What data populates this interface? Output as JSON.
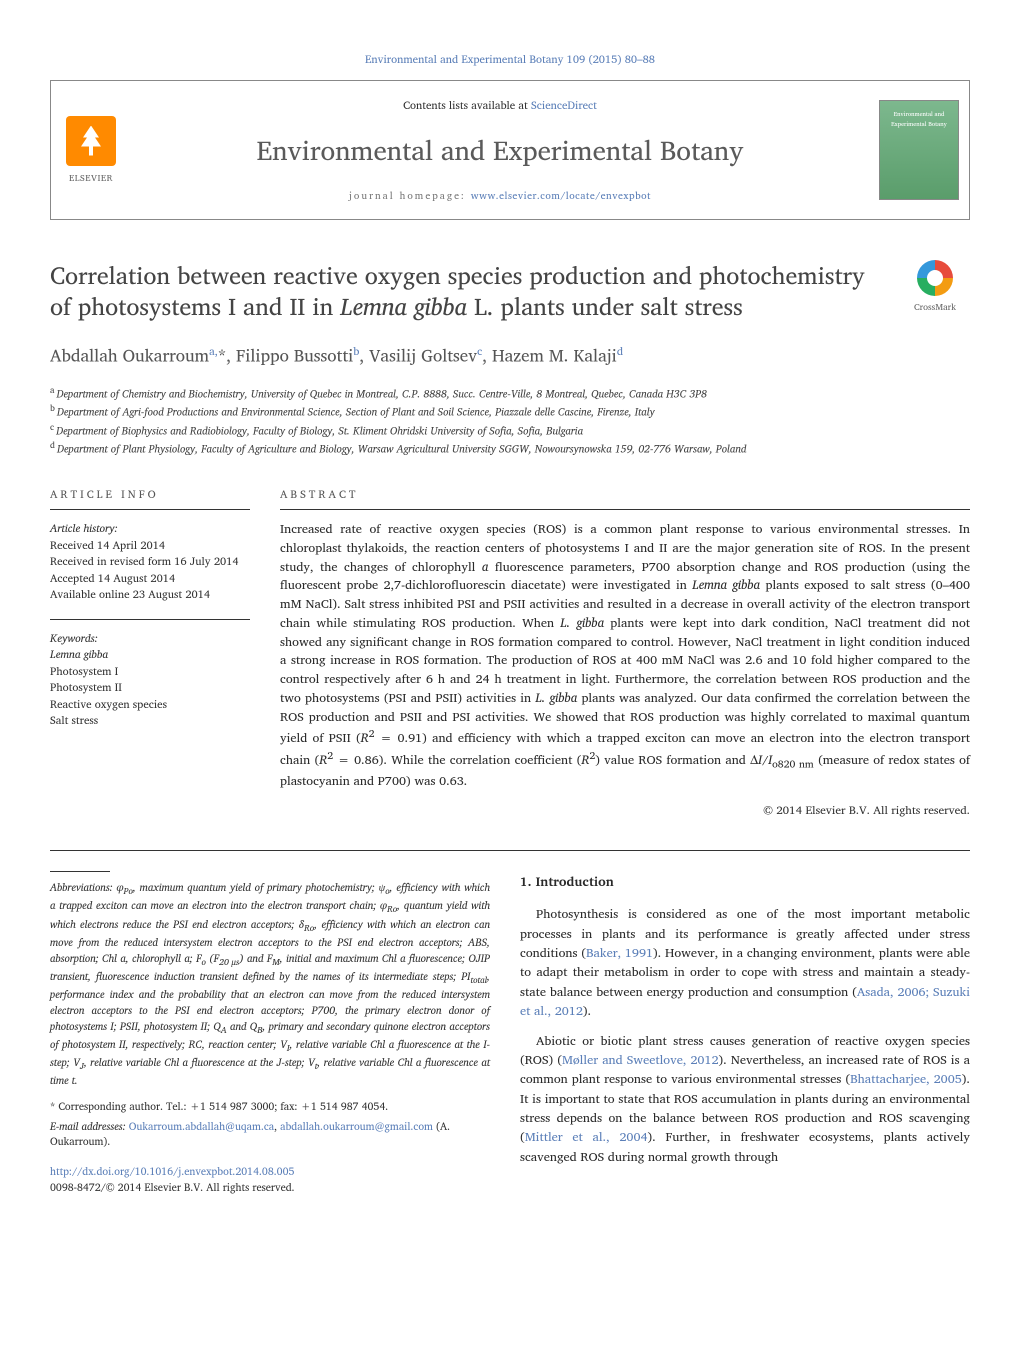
{
  "citation_line": "Environmental and Experimental Botany 109 (2015) 80–88",
  "header": {
    "contents_label": "Contents lists available at ",
    "contents_link": "ScienceDirect",
    "journal_name": "Environmental and Experimental Botany",
    "homepage_label": "journal homepage: ",
    "homepage_url": "www.elsevier.com/locate/envexpbot",
    "elsevier_text": "ELSEVIER"
  },
  "crossmark_label": "CrossMark",
  "title_html": "Correlation between reactive oxygen species production and photochemistry of photosystems I and II in <em>Lemna gibba</em> L. plants under salt stress",
  "authors_html": "Abdallah Oukarroum<sup>a,</sup>*, Filippo Bussotti<sup>b</sup>, Vasilij Goltsev<sup>c</sup>, Hazem M. Kalaji<sup>d</sup>",
  "affiliations": [
    "a Department of Chemistry and Biochemistry, University of Quebec in Montreal, C.P. 8888, Succ. Centre-Ville, 8 Montreal, Quebec, Canada H3C 3P8",
    "b Department of Agri-food Productions and Environmental Science, Section of Plant and Soil Science, Piazzale delle Cascine, Firenze, Italy",
    "c Department of Biophysics and Radiobiology, Faculty of Biology, St. Kliment Ohridski University of Sofia, Sofia, Bulgaria",
    "d Department of Plant Physiology, Faculty of Agriculture and Biology, Warsaw Agricultural University SGGW, Nowoursynowska 159, 02-776 Warsaw, Poland"
  ],
  "info_header": "ARTICLE INFO",
  "abstract_header": "ABSTRACT",
  "history": {
    "label": "Article history:",
    "received": "Received 14 April 2014",
    "revised": "Received in revised form 16 July 2014",
    "accepted": "Accepted 14 August 2014",
    "online": "Available online 23 August 2014"
  },
  "keywords": {
    "label": "Keywords:",
    "items": [
      "Lemna gibba",
      "Photosystem I",
      "Photosystem II",
      "Reactive oxygen species",
      "Salt stress"
    ]
  },
  "abstract_html": "Increased rate of reactive oxygen species (ROS) is a common plant response to various environmental stresses. In chloroplast thylakoids, the reaction centers of photosystems I and II are the major generation site of ROS. In the present study, the changes of chlorophyll <em>a</em> fluorescence parameters, P700 absorption change and ROS production (using the fluorescent probe 2,7-dichlorofluorescin diacetate) were investigated in <em>Lemna gibba</em> plants exposed to salt stress (0–400 mM NaCl). Salt stress inhibited PSI and PSII activities and resulted in a decrease in overall activity of the electron transport chain while stimulating ROS production. When <em>L. gibba</em> plants were kept into dark condition, NaCl treatment did not showed any significant change in ROS formation compared to control. However, NaCl treatment in light condition induced a strong increase in ROS formation. The production of ROS at 400 mM NaCl was 2.6 and 10 fold higher compared to the control respectively after 6 h and 24 h treatment in light. Furthermore, the correlation between ROS production and the two photosystems (PSI and PSII) activities in <em>L. gibba</em> plants was analyzed. Our data confirmed the correlation between the ROS production and PSII and PSI activities. We showed that ROS production was highly correlated to maximal quantum yield of PSII (<em>R</em><sup>2</sup> = 0.91) and efficiency with which a trapped exciton can move an electron into the electron transport chain (<em>R</em><sup>2</sup> = 0.86). While the correlation coefficient (<em>R</em><sup>2</sup>) value ROS formation and Δ<em>I</em>/<em>I</em><sub>o820 nm</sub> (measure of redox states of plastocyanin and P700) was 0.63.",
  "copyright": "© 2014 Elsevier B.V. All rights reserved.",
  "abbreviations_html": "<span class=\"abbr-lead\"><em>Abbreviations:</em></span> φ<sub>Po</sub>, maximum quantum yield of primary photochemistry; ψ<sub>o</sub>, efficiency with which a trapped exciton can move an electron into the electron transport chain; φ<sub>Ro</sub>, quantum yield with which electrons reduce the PSI end electron acceptors; δ<sub>Ro</sub>, efficiency with which an electron can move from the reduced intersystem electron acceptors to the PSI end electron acceptors; ABS, absorption; Chl <em>a</em>, chlorophyll a; F<sub>o</sub> (F<sub>20 μs</sub>) and F<sub>M</sub>, initial and maximum Chl <em>a</em> fluorescence; OJIP transient, fluorescence induction transient defined by the names of its intermediate steps; PI<sub>total</sub>, performance index and the probability that an electron can move from the reduced intersystem electron acceptors to the PSI end electron acceptors; P700, the primary electron donor of photosystems I; PSII, photosystem II; Q<sub>A</sub> and Q<sub>B</sub>, primary and secondary quinone electron acceptors of photosystem II, respectively; RC, reaction center; V<sub>I</sub>, relative variable Chl <em>a</em> fluorescence at the I-step; V<sub>J</sub>, relative variable Chl <em>a</em> fluorescence at the J-step; V<sub>t</sub>, relative variable Chl <em>a</em> fluorescence at time <em>t</em>.",
  "corresponding": "* Corresponding author. Tel.: +1 514 987 3000; fax: +1 514 987 4054.",
  "email_label": "E-mail addresses: ",
  "emails": [
    "Oukarroum.abdallah@uqam.ca",
    "abdallah.oukarroum@gmail.com"
  ],
  "email_owner": " (A. Oukarroum).",
  "intro_heading": "1. Introduction",
  "intro_p1_html": "Photosynthesis is considered as one of the most important metabolic processes in plants and its performance is greatly affected under stress conditions (<a href=\"#\">Baker, 1991</a>). However, in a changing environment, plants were able to adapt their metabolism in order to cope with stress and maintain a steady-state balance between energy production and consumption (<a href=\"#\">Asada, 2006; Suzuki et al., 2012</a>).",
  "intro_p2_html": "Abiotic or biotic plant stress causes generation of reactive oxygen species (ROS) (<a href=\"#\">Møller and Sweetlove, 2012</a>). Nevertheless, an increased rate of ROS is a common plant response to various environmental stresses (<a href=\"#\">Bhattacharjee, 2005</a>). It is important to state that ROS accumulation in plants during an environmental stress depends on the balance between ROS production and ROS scavenging (<a href=\"#\">Mittler et al., 2004</a>). Further, in freshwater ecosystems, plants actively scavenged ROS during normal growth through",
  "doi": "http://dx.doi.org/10.1016/j.envexpbot.2014.08.005",
  "issn_line": "0098-8472/© 2014 Elsevier B.V. All rights reserved.",
  "colors": {
    "link": "#5b7fb8",
    "elsevier_orange": "#ff8a00",
    "text": "#1a1a1a",
    "muted": "#555555"
  }
}
